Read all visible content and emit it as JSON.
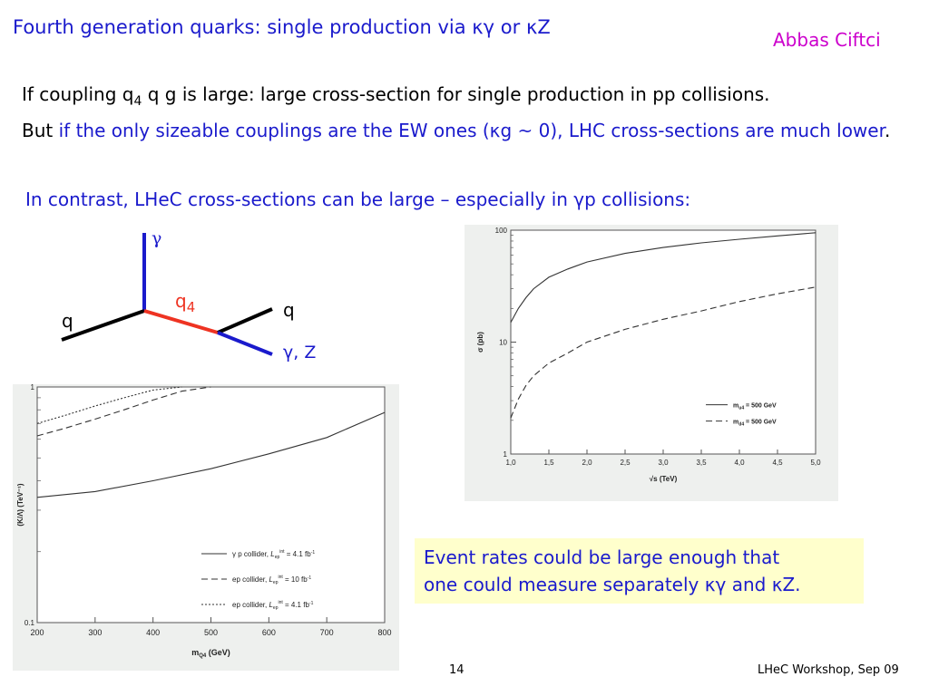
{
  "slide": {
    "title": "Fourth generation quarks: single production via κγ or κZ",
    "author": "Abbas Ciftci",
    "para1": {
      "t1": "If coupling q",
      "sub1": "4",
      "t2": " q g is large: large cross-section for single production in pp collisions.",
      "t3": "But ",
      "t4": "if the only sizeable couplings are the EW ones (κg ~ 0), LHC cross-sections are much lower",
      "t5": "."
    },
    "para2": "In contrast, LHeC cross-sections can be large – especially in γp collisions:",
    "callout": {
      "line1": "Event rates could be large enough that",
      "line2": "one could measure separately κγ and κZ."
    },
    "page_number": "14",
    "footer": "LHeC Workshop, Sep 09"
  },
  "feynman": {
    "gamma": "γ",
    "q_in": "q",
    "q4": "q",
    "q4_sub": "4",
    "q_out": "q",
    "gamma_z": "γ, Z",
    "colors": {
      "photon": "#1a1acc",
      "quark": "#000000",
      "q4": "#ee3322"
    }
  },
  "chart_data": [
    {
      "type": "line",
      "xlabel": "√s (TeV)",
      "ylabel": "σ (pb)",
      "xlim": [
        1.0,
        5.0
      ],
      "ylim": [
        1,
        100
      ],
      "yscale": "log",
      "x_ticks": [
        "1,0",
        "1,5",
        "2,0",
        "2,5",
        "3,0",
        "3,5",
        "4,0",
        "4,5",
        "5,0"
      ],
      "y_ticks": [
        "1",
        "10",
        "100"
      ],
      "legend_position": "center-right",
      "series": [
        {
          "name": "m_u4 = 500 GeV",
          "legend_main": "m",
          "legend_sub": "u4",
          "legend_rest": " = 500 GeV",
          "style": "solid",
          "x": [
            1.0,
            1.1,
            1.2,
            1.3,
            1.5,
            1.75,
            2.0,
            2.5,
            3.0,
            3.5,
            4.0,
            4.5,
            5.0
          ],
          "y": [
            15,
            20,
            25,
            30,
            38,
            45,
            52,
            62,
            70,
            77,
            83,
            89,
            95
          ]
        },
        {
          "name": "m_d4 = 500 GeV",
          "legend_main": "m",
          "legend_sub": "d4",
          "legend_rest": " = 500 GeV",
          "style": "dashed",
          "x": [
            1.0,
            1.1,
            1.2,
            1.3,
            1.5,
            1.75,
            2.0,
            2.5,
            3.0,
            3.5,
            4.0,
            4.5,
            5.0
          ],
          "y": [
            2.1,
            3.1,
            4.1,
            5.0,
            6.5,
            8.0,
            10.0,
            13.0,
            16.0,
            19.0,
            23.0,
            27.0,
            31.0
          ]
        }
      ]
    },
    {
      "type": "line",
      "xlabel": "m",
      "xlabel_sub": "Q4",
      "xlabel_rest": " (GeV)",
      "ylabel": "(K/Λ) (TeV⁻¹)",
      "xlim": [
        200,
        800
      ],
      "ylim": [
        0.1,
        1
      ],
      "yscale": "log",
      "x_ticks": [
        "200",
        "300",
        "400",
        "500",
        "600",
        "700",
        "800"
      ],
      "y_ticks": [
        "0.1",
        "1"
      ],
      "legend_position": "lower-right",
      "series": [
        {
          "name": "γp collider, L_ep^int = 4.1 fb⁻¹",
          "legend_main": "γ p collider, ",
          "legend_L": "L",
          "legend_sub": "ep",
          "legend_sup": "int",
          "legend_rest": " = 4.1 fb",
          "legend_exp": "-1",
          "style": "solid",
          "x": [
            200,
            300,
            400,
            500,
            600,
            700,
            800
          ],
          "y": [
            0.34,
            0.36,
            0.4,
            0.45,
            0.52,
            0.61,
            0.78
          ]
        },
        {
          "name": "ep collider, L_ep^int = 10 fb⁻¹",
          "legend_main": "ep collider, ",
          "legend_L": "L",
          "legend_sub": "ep",
          "legend_sup": "int",
          "legend_rest": " = 10 fb",
          "legend_exp": "-1",
          "style": "dashed",
          "x": [
            200,
            250,
            300,
            350,
            400,
            450,
            500
          ],
          "y": [
            0.62,
            0.67,
            0.73,
            0.8,
            0.88,
            0.96,
            1.0
          ]
        },
        {
          "name": "ep collider, L_ep^int = 4.1 fb⁻¹",
          "legend_main": "ep collider, ",
          "legend_L": "L",
          "legend_sub": "ep",
          "legend_sup": "int",
          "legend_rest": " = 4.1 fb",
          "legend_exp": "-1",
          "style": "dotted",
          "x": [
            200,
            250,
            300,
            350,
            400,
            450
          ],
          "y": [
            0.7,
            0.76,
            0.83,
            0.9,
            0.97,
            1.0
          ]
        }
      ]
    }
  ]
}
